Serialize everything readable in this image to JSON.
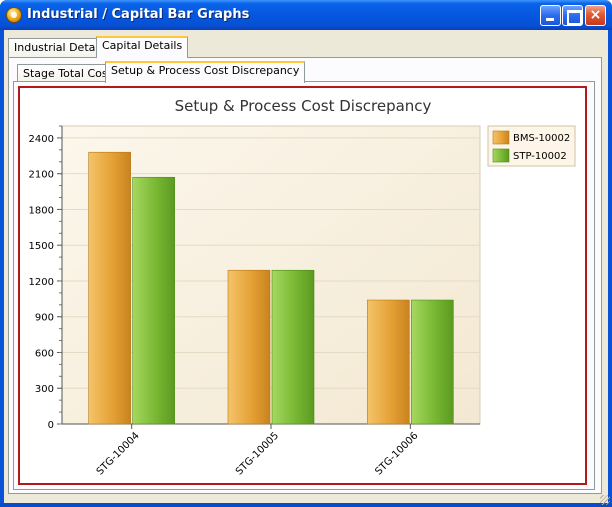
{
  "window": {
    "title": "Industrial / Capital Bar Graphs",
    "close_glyph": "×"
  },
  "outer_tabs": [
    {
      "label": "Industrial Details",
      "active": false
    },
    {
      "label": "Capital Details",
      "active": true
    }
  ],
  "inner_tabs": [
    {
      "label": "Stage Total Cost",
      "active": false
    },
    {
      "label": "Setup & Process Cost Discrepancy",
      "active": true
    }
  ],
  "chart_data": {
    "type": "bar",
    "title": "Setup & Process Cost Discrepancy",
    "categories": [
      "STG-10004",
      "STG-10005",
      "STG-10006"
    ],
    "series": [
      {
        "name": "BMS-10002",
        "values": [
          2280,
          1290,
          1040
        ],
        "color": "#e8a83a"
      },
      {
        "name": "STP-10002",
        "values": [
          2070,
          1290,
          1040
        ],
        "color": "#7ab835"
      }
    ],
    "ylim": [
      0,
      2500
    ],
    "yticks": [
      0,
      300,
      600,
      900,
      1200,
      1500,
      1800,
      2100,
      2400
    ],
    "xlabel": "",
    "ylabel": "",
    "grid": true,
    "legend": "top-right",
    "colors": {
      "plot_bg": "#f8f2e4",
      "frame": "#b21a1a"
    }
  }
}
